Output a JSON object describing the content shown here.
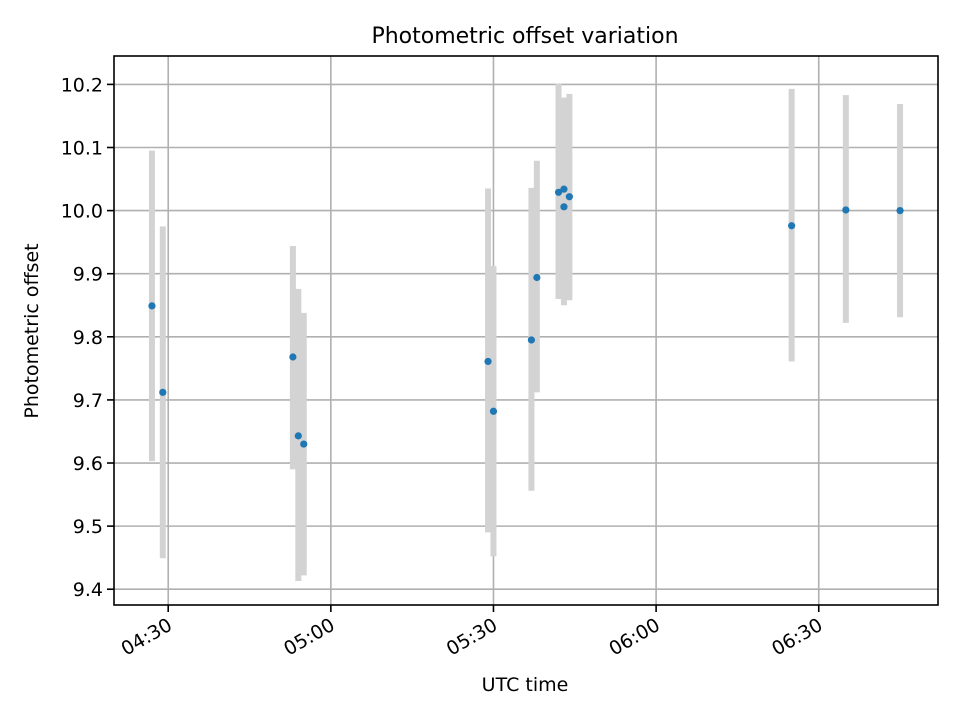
{
  "chart_data": {
    "type": "scatter",
    "title": "Photometric offset variation",
    "xlabel": "UTC time",
    "ylabel": "Photometric offset",
    "x_axis": {
      "kind": "time",
      "range": [
        "04:20",
        "06:52"
      ],
      "ticks": [
        "04:30",
        "05:00",
        "05:30",
        "06:00",
        "06:30"
      ]
    },
    "y_axis": {
      "range": [
        9.375,
        10.245
      ],
      "ticks": [
        "9.4",
        "9.5",
        "9.6",
        "9.7",
        "9.8",
        "9.9",
        "10.0",
        "10.1",
        "10.2"
      ]
    },
    "grid": true,
    "point_color": "#1f77b4",
    "errorbar_color": "#d3d3d3",
    "points": [
      {
        "x": "04:27",
        "y": 9.849,
        "ylow": 9.603,
        "yhigh": 10.095
      },
      {
        "x": "04:29",
        "y": 9.712,
        "ylow": 9.449,
        "yhigh": 9.975
      },
      {
        "x": "04:53",
        "y": 9.768,
        "ylow": 9.59,
        "yhigh": 9.944
      },
      {
        "x": "04:54",
        "y": 9.643,
        "ylow": 9.413,
        "yhigh": 9.876
      },
      {
        "x": "04:55",
        "y": 9.63,
        "ylow": 9.422,
        "yhigh": 9.838
      },
      {
        "x": "05:29",
        "y": 9.761,
        "ylow": 9.49,
        "yhigh": 10.035
      },
      {
        "x": "05:30",
        "y": 9.682,
        "ylow": 9.452,
        "yhigh": 9.912
      },
      {
        "x": "05:37",
        "y": 9.795,
        "ylow": 9.556,
        "yhigh": 10.036
      },
      {
        "x": "05:38",
        "y": 9.894,
        "ylow": 9.712,
        "yhigh": 10.079
      },
      {
        "x": "05:42",
        "y": 10.029,
        "ylow": 9.86,
        "yhigh": 10.201
      },
      {
        "x": "05:43",
        "y": 10.006,
        "ylow": 9.85,
        "yhigh": 10.171
      },
      {
        "x": "05:43",
        "y": 10.034,
        "ylow": 9.858,
        "yhigh": 10.179
      },
      {
        "x": "05:44",
        "y": 10.022,
        "ylow": 9.858,
        "yhigh": 10.185
      },
      {
        "x": "06:25",
        "y": 9.976,
        "ylow": 9.761,
        "yhigh": 10.193
      },
      {
        "x": "06:35",
        "y": 10.001,
        "ylow": 9.822,
        "yhigh": 10.183
      },
      {
        "x": "06:45",
        "y": 10.0,
        "ylow": 9.831,
        "yhigh": 10.169
      }
    ]
  }
}
